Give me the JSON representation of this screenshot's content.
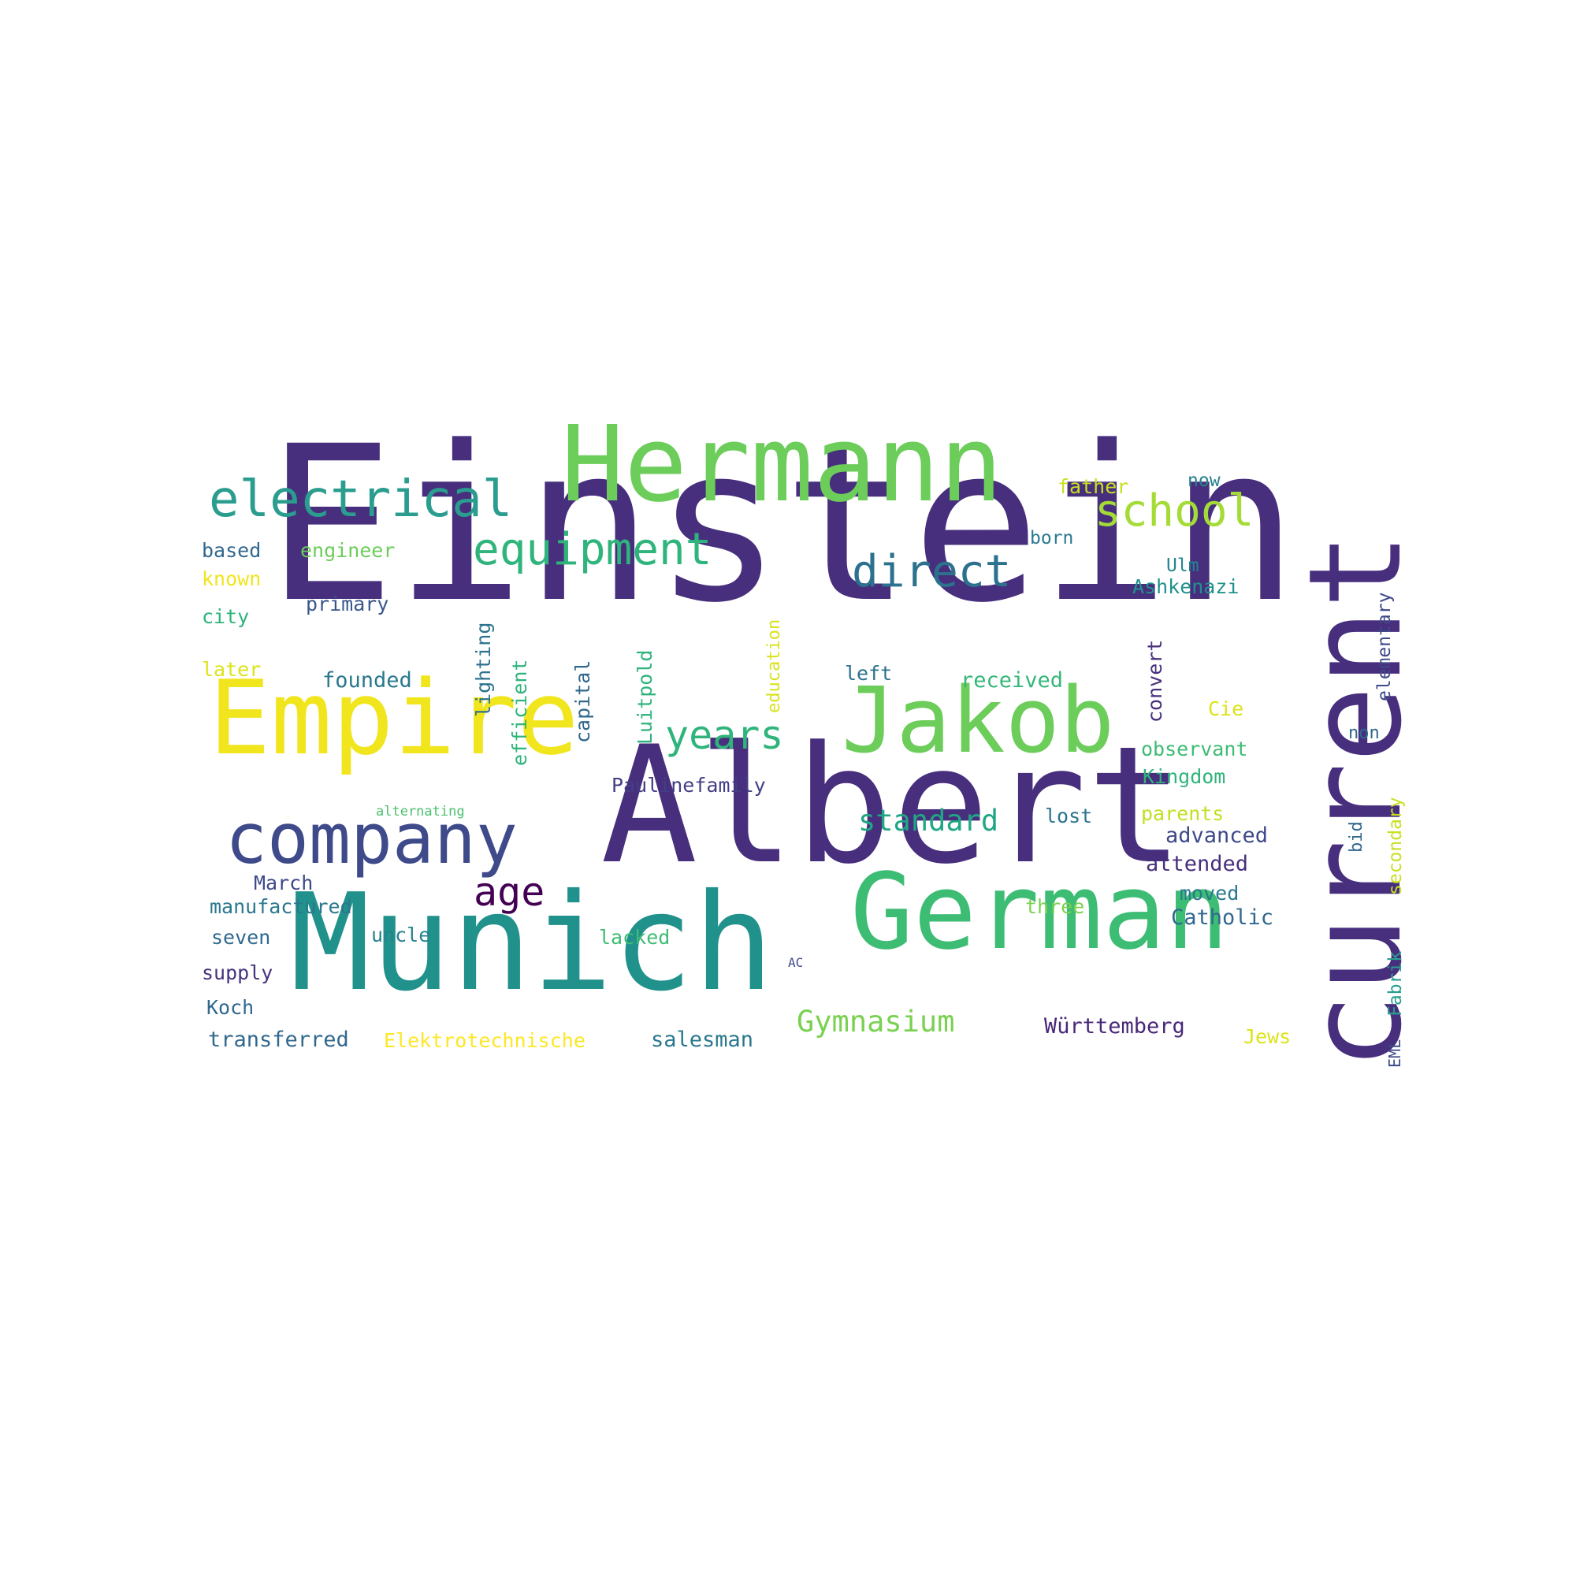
{
  "words": [
    {
      "text": "Einstein",
      "color": "#472f7d",
      "vertical": false
    },
    {
      "text": "Albert",
      "color": "#472f7d",
      "vertical": false
    },
    {
      "text": "Munich",
      "color": "#21918c",
      "vertical": false
    },
    {
      "text": "current",
      "color": "#472f7d",
      "vertical": true
    },
    {
      "text": "German",
      "color": "#3dbc74",
      "vertical": false
    },
    {
      "text": "Hermann",
      "color": "#6ccd5a",
      "vertical": false
    },
    {
      "text": "Empire",
      "color": "#f1e51d",
      "vertical": false
    },
    {
      "text": "Jakob",
      "color": "#6ccd5a",
      "vertical": false
    },
    {
      "text": "company",
      "color": "#3e4a89",
      "vertical": false
    },
    {
      "text": "electrical",
      "color": "#2a9d8f",
      "vertical": false
    },
    {
      "text": "equipment",
      "color": "#2fb47c",
      "vertical": false
    },
    {
      "text": "direct",
      "color": "#2c728e",
      "vertical": false
    },
    {
      "text": "school",
      "color": "#a5db36",
      "vertical": false
    },
    {
      "text": "years",
      "color": "#2fb47c",
      "vertical": false
    },
    {
      "text": "age",
      "color": "#440154",
      "vertical": false
    },
    {
      "text": "standard",
      "color": "#21a685",
      "vertical": false
    },
    {
      "text": "Gymnasium",
      "color": "#7ad151",
      "vertical": false
    },
    {
      "text": "father",
      "color": "#c8e020",
      "vertical": false
    },
    {
      "text": "now",
      "color": "#26828e",
      "vertical": false
    },
    {
      "text": "born",
      "color": "#2a788e",
      "vertical": false
    },
    {
      "text": "Ulm",
      "color": "#25858e",
      "vertical": false
    },
    {
      "text": "Ashkenazi",
      "color": "#21918c",
      "vertical": false
    },
    {
      "text": "based",
      "color": "#31688e",
      "vertical": false
    },
    {
      "text": "engineer",
      "color": "#6ccd5a",
      "vertical": false
    },
    {
      "text": "known",
      "color": "#f1e51d",
      "vertical": false
    },
    {
      "text": "primary",
      "color": "#39568c",
      "vertical": false
    },
    {
      "text": "city",
      "color": "#2fb47c",
      "vertical": false
    },
    {
      "text": "later",
      "color": "#dde318",
      "vertical": false
    },
    {
      "text": "founded",
      "color": "#2a788e",
      "vertical": false
    },
    {
      "text": "left",
      "color": "#2c728e",
      "vertical": false
    },
    {
      "text": "received",
      "color": "#35b779",
      "vertical": false
    },
    {
      "text": "Cie",
      "color": "#dde318",
      "vertical": false
    },
    {
      "text": "observant",
      "color": "#3dbc74",
      "vertical": false
    },
    {
      "text": "Kingdom",
      "color": "#2fb47c",
      "vertical": false
    },
    {
      "text": "non",
      "color": "#31688e",
      "vertical": false
    },
    {
      "text": "Paulinefamily",
      "color": "#433e85",
      "vertical": false
    },
    {
      "text": "alternating",
      "color": "#4ac16d",
      "vertical": false
    },
    {
      "text": "lost",
      "color": "#2c728e",
      "vertical": false
    },
    {
      "text": "parents",
      "color": "#c2df23",
      "vertical": false
    },
    {
      "text": "advanced",
      "color": "#3e4a89",
      "vertical": false
    },
    {
      "text": "attended",
      "color": "#472f7d",
      "vertical": false
    },
    {
      "text": "March",
      "color": "#3e4a89",
      "vertical": false
    },
    {
      "text": "manufactured",
      "color": "#2a788e",
      "vertical": false
    },
    {
      "text": "three",
      "color": "#7ad151",
      "vertical": false
    },
    {
      "text": "moved",
      "color": "#2a788e",
      "vertical": false
    },
    {
      "text": "Catholic",
      "color": "#31688e",
      "vertical": false
    },
    {
      "text": "seven",
      "color": "#31688e",
      "vertical": false
    },
    {
      "text": "uncle",
      "color": "#26828e",
      "vertical": false
    },
    {
      "text": "lacked",
      "color": "#3dbc74",
      "vertical": false
    },
    {
      "text": "supply",
      "color": "#46327e",
      "vertical": false
    },
    {
      "text": "AC",
      "color": "#3e4a89",
      "vertical": false
    },
    {
      "text": "Koch",
      "color": "#31688e",
      "vertical": false
    },
    {
      "text": "transferred",
      "color": "#31688e",
      "vertical": false
    },
    {
      "text": "Elektrotechnische",
      "color": "#fde725",
      "vertical": false
    },
    {
      "text": "salesman",
      "color": "#2a788e",
      "vertical": false
    },
    {
      "text": "Württemberg",
      "color": "#482878",
      "vertical": false
    },
    {
      "text": "Jews",
      "color": "#dde318",
      "vertical": false
    },
    {
      "text": "lighting",
      "color": "#2c728e",
      "vertical": true
    },
    {
      "text": "efficient",
      "color": "#2fb47c",
      "vertical": true
    },
    {
      "text": "capital",
      "color": "#31688e",
      "vertical": true
    },
    {
      "text": "Luitpold",
      "color": "#2fb47c",
      "vertical": true
    },
    {
      "text": "education",
      "color": "#d8e219",
      "vertical": true
    },
    {
      "text": "convert",
      "color": "#472f7d",
      "vertical": true
    },
    {
      "text": "elementary",
      "color": "#3e4a89",
      "vertical": true
    },
    {
      "text": "bid",
      "color": "#31688e",
      "vertical": true
    },
    {
      "text": "secondary",
      "color": "#c8e020",
      "vertical": true
    },
    {
      "text": "Fabrik",
      "color": "#2a9d8f",
      "vertical": true
    },
    {
      "text": "EML",
      "color": "#3e4a89",
      "vertical": true
    }
  ]
}
